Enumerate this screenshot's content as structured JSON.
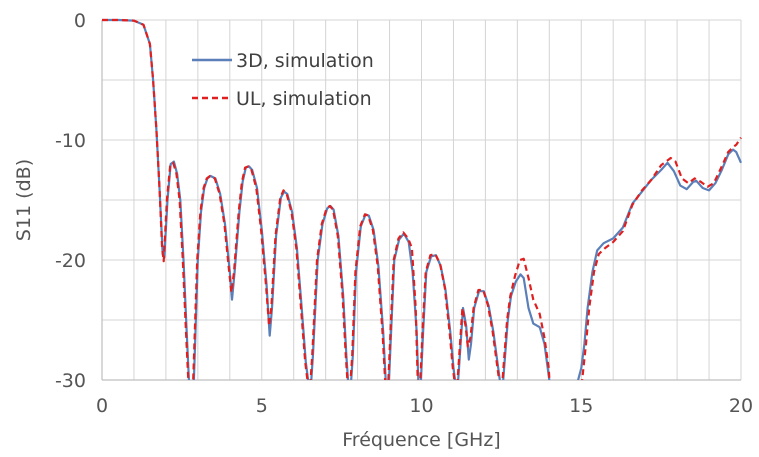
{
  "chart_data": {
    "type": "line",
    "xlabel": "Fréquence [GHz]",
    "ylabel": "S11 (dB)",
    "xlim": [
      0,
      20
    ],
    "ylim": [
      -30,
      0
    ],
    "xticks": [
      0,
      5,
      10,
      15,
      20
    ],
    "yticks": [
      0,
      -10,
      -20,
      -30
    ],
    "minor_grid_x_step": 1,
    "minor_grid_y_step": 5,
    "grid": true,
    "legend_position": "top-left",
    "series": [
      {
        "name": "3D, simulation",
        "color": "#5b7fb8",
        "dash": "solid",
        "points": [
          [
            0,
            0
          ],
          [
            0.5,
            0
          ],
          [
            1,
            -0.05
          ],
          [
            1.3,
            -0.4
          ],
          [
            1.5,
            -2
          ],
          [
            1.6,
            -5
          ],
          [
            1.7,
            -9
          ],
          [
            1.8,
            -14
          ],
          [
            1.9,
            -19.5
          ],
          [
            1.95,
            -19.8
          ],
          [
            2.05,
            -15
          ],
          [
            2.15,
            -12
          ],
          [
            2.25,
            -11.8
          ],
          [
            2.35,
            -12.8
          ],
          [
            2.45,
            -15
          ],
          [
            2.55,
            -20
          ],
          [
            2.65,
            -26
          ],
          [
            2.72,
            -30
          ],
          [
            2.75,
            -32
          ],
          [
            2.85,
            -32
          ],
          [
            2.9,
            -28
          ],
          [
            3.0,
            -20
          ],
          [
            3.1,
            -16
          ],
          [
            3.2,
            -14
          ],
          [
            3.3,
            -13.2
          ],
          [
            3.4,
            -13
          ],
          [
            3.55,
            -13.2
          ],
          [
            3.7,
            -14.5
          ],
          [
            3.85,
            -17
          ],
          [
            4.0,
            -21
          ],
          [
            4.07,
            -23.3
          ],
          [
            4.15,
            -21
          ],
          [
            4.3,
            -16
          ],
          [
            4.4,
            -13.5
          ],
          [
            4.5,
            -12.3
          ],
          [
            4.6,
            -12.2
          ],
          [
            4.7,
            -12.5
          ],
          [
            4.85,
            -14
          ],
          [
            5.0,
            -17.5
          ],
          [
            5.15,
            -22
          ],
          [
            5.25,
            -26.3
          ],
          [
            5.32,
            -24
          ],
          [
            5.45,
            -18
          ],
          [
            5.6,
            -14.8
          ],
          [
            5.7,
            -14.3
          ],
          [
            5.8,
            -14.5
          ],
          [
            5.95,
            -16
          ],
          [
            6.1,
            -19
          ],
          [
            6.25,
            -24
          ],
          [
            6.38,
            -28.5
          ],
          [
            6.45,
            -30
          ],
          [
            6.5,
            -32
          ],
          [
            6.6,
            -28
          ],
          [
            6.75,
            -20
          ],
          [
            6.9,
            -17
          ],
          [
            7.05,
            -15.7
          ],
          [
            7.15,
            -15.5
          ],
          [
            7.25,
            -15.8
          ],
          [
            7.4,
            -18
          ],
          [
            7.55,
            -23
          ],
          [
            7.65,
            -28
          ],
          [
            7.7,
            -30
          ],
          [
            7.75,
            -32
          ],
          [
            7.85,
            -28
          ],
          [
            7.95,
            -21
          ],
          [
            8.1,
            -17.2
          ],
          [
            8.25,
            -16.2
          ],
          [
            8.35,
            -16.3
          ],
          [
            8.5,
            -17.5
          ],
          [
            8.65,
            -20.5
          ],
          [
            8.8,
            -26
          ],
          [
            8.88,
            -30
          ],
          [
            8.95,
            -32
          ],
          [
            9.05,
            -26
          ],
          [
            9.15,
            -20
          ],
          [
            9.3,
            -18.3
          ],
          [
            9.45,
            -17.8
          ],
          [
            9.6,
            -18.5
          ],
          [
            9.72,
            -21
          ],
          [
            9.85,
            -26
          ],
          [
            9.9,
            -30
          ],
          [
            9.95,
            -32
          ],
          [
            10.05,
            -26
          ],
          [
            10.15,
            -21
          ],
          [
            10.3,
            -19.7
          ],
          [
            10.45,
            -19.6
          ],
          [
            10.6,
            -20.5
          ],
          [
            10.75,
            -22.5
          ],
          [
            10.9,
            -26
          ],
          [
            11.0,
            -29
          ],
          [
            11.05,
            -30
          ],
          [
            11.1,
            -32
          ],
          [
            11.2,
            -28
          ],
          [
            11.3,
            -24
          ],
          [
            11.4,
            -25.5
          ],
          [
            11.48,
            -28.3
          ],
          [
            11.55,
            -27
          ],
          [
            11.65,
            -24
          ],
          [
            11.8,
            -22.6
          ],
          [
            11.95,
            -22.6
          ],
          [
            12.1,
            -23.8
          ],
          [
            12.25,
            -26
          ],
          [
            12.4,
            -29
          ],
          [
            12.45,
            -30
          ],
          [
            12.5,
            -32
          ],
          [
            12.6,
            -28.5
          ],
          [
            12.7,
            -25
          ],
          [
            12.8,
            -23
          ],
          [
            12.95,
            -21.8
          ],
          [
            13.1,
            -21.2
          ],
          [
            13.2,
            -21.5
          ],
          [
            13.35,
            -24
          ],
          [
            13.5,
            -25.3
          ],
          [
            13.7,
            -25.6
          ],
          [
            13.85,
            -27
          ],
          [
            14.0,
            -30
          ],
          [
            14.05,
            -32
          ],
          [
            14.8,
            -32
          ],
          [
            14.9,
            -30
          ],
          [
            15.0,
            -29
          ],
          [
            15.1,
            -27
          ],
          [
            15.2,
            -24
          ],
          [
            15.35,
            -21
          ],
          [
            15.5,
            -19.2
          ],
          [
            15.7,
            -18.6
          ],
          [
            16.0,
            -18.2
          ],
          [
            16.3,
            -17.3
          ],
          [
            16.6,
            -15.3
          ],
          [
            16.9,
            -14.3
          ],
          [
            17.2,
            -13.3
          ],
          [
            17.5,
            -12.5
          ],
          [
            17.7,
            -11.9
          ],
          [
            17.9,
            -12.6
          ],
          [
            18.1,
            -13.8
          ],
          [
            18.3,
            -14.1
          ],
          [
            18.5,
            -13.5
          ],
          [
            18.6,
            -13.4
          ],
          [
            18.8,
            -14
          ],
          [
            19.0,
            -14.2
          ],
          [
            19.2,
            -13.6
          ],
          [
            19.4,
            -12.5
          ],
          [
            19.6,
            -11.2
          ],
          [
            19.75,
            -10.8
          ],
          [
            19.85,
            -11
          ],
          [
            19.95,
            -11.6
          ],
          [
            20.0,
            -11.9
          ]
        ]
      },
      {
        "name": "UL, simulation",
        "color": "#e02020",
        "dash": "dashed",
        "points": [
          [
            0,
            0
          ],
          [
            0.5,
            0
          ],
          [
            1,
            -0.05
          ],
          [
            1.3,
            -0.4
          ],
          [
            1.5,
            -2
          ],
          [
            1.6,
            -5
          ],
          [
            1.7,
            -9
          ],
          [
            1.8,
            -14
          ],
          [
            1.88,
            -19
          ],
          [
            1.93,
            -20.1
          ],
          [
            2.03,
            -15
          ],
          [
            2.13,
            -12.2
          ],
          [
            2.23,
            -11.9
          ],
          [
            2.33,
            -12.8
          ],
          [
            2.43,
            -15
          ],
          [
            2.53,
            -20
          ],
          [
            2.63,
            -26
          ],
          [
            2.7,
            -30
          ],
          [
            2.73,
            -32
          ],
          [
            2.83,
            -32
          ],
          [
            2.88,
            -28
          ],
          [
            2.98,
            -20
          ],
          [
            3.08,
            -16
          ],
          [
            3.18,
            -14
          ],
          [
            3.28,
            -13.2
          ],
          [
            3.38,
            -13
          ],
          [
            3.53,
            -13.2
          ],
          [
            3.68,
            -14.5
          ],
          [
            3.83,
            -17
          ],
          [
            3.98,
            -21
          ],
          [
            4.05,
            -22.7
          ],
          [
            4.13,
            -21
          ],
          [
            4.28,
            -16
          ],
          [
            4.38,
            -13.5
          ],
          [
            4.48,
            -12.3
          ],
          [
            4.58,
            -12.2
          ],
          [
            4.68,
            -12.5
          ],
          [
            4.83,
            -14
          ],
          [
            4.98,
            -17.5
          ],
          [
            5.13,
            -22
          ],
          [
            5.23,
            -25.5
          ],
          [
            5.3,
            -24
          ],
          [
            5.43,
            -18
          ],
          [
            5.58,
            -14.8
          ],
          [
            5.68,
            -14.2
          ],
          [
            5.78,
            -14.5
          ],
          [
            5.93,
            -16
          ],
          [
            6.08,
            -19
          ],
          [
            6.23,
            -24
          ],
          [
            6.36,
            -28.5
          ],
          [
            6.43,
            -30
          ],
          [
            6.48,
            -32
          ],
          [
            6.58,
            -28
          ],
          [
            6.73,
            -20
          ],
          [
            6.88,
            -17
          ],
          [
            7.03,
            -15.7
          ],
          [
            7.13,
            -15.5
          ],
          [
            7.23,
            -15.8
          ],
          [
            7.38,
            -18
          ],
          [
            7.53,
            -23
          ],
          [
            7.63,
            -28
          ],
          [
            7.68,
            -30
          ],
          [
            7.73,
            -32
          ],
          [
            7.83,
            -28
          ],
          [
            7.93,
            -21
          ],
          [
            8.08,
            -17.2
          ],
          [
            8.23,
            -16.2
          ],
          [
            8.33,
            -16.3
          ],
          [
            8.48,
            -17.5
          ],
          [
            8.63,
            -20.5
          ],
          [
            8.78,
            -26
          ],
          [
            8.86,
            -30
          ],
          [
            8.93,
            -32
          ],
          [
            9.03,
            -26
          ],
          [
            9.13,
            -20
          ],
          [
            9.28,
            -18.2
          ],
          [
            9.43,
            -17.7
          ],
          [
            9.58,
            -18.2
          ],
          [
            9.7,
            -19
          ],
          [
            9.82,
            -24
          ],
          [
            9.88,
            -30
          ],
          [
            9.93,
            -32
          ],
          [
            10.03,
            -26
          ],
          [
            10.13,
            -21
          ],
          [
            10.28,
            -19.6
          ],
          [
            10.43,
            -19.5
          ],
          [
            10.58,
            -20.3
          ],
          [
            10.73,
            -22.3
          ],
          [
            10.88,
            -26
          ],
          [
            10.98,
            -29
          ],
          [
            11.03,
            -30
          ],
          [
            11.08,
            -32
          ],
          [
            11.18,
            -28
          ],
          [
            11.28,
            -24
          ],
          [
            11.38,
            -25.5
          ],
          [
            11.45,
            -27.2
          ],
          [
            11.53,
            -26.5
          ],
          [
            11.63,
            -24
          ],
          [
            11.78,
            -22.5
          ],
          [
            11.93,
            -22.5
          ],
          [
            12.08,
            -23.8
          ],
          [
            12.23,
            -26
          ],
          [
            12.38,
            -29
          ],
          [
            12.43,
            -30
          ],
          [
            12.48,
            -32
          ],
          [
            12.58,
            -28.5
          ],
          [
            12.68,
            -25
          ],
          [
            12.78,
            -23
          ],
          [
            12.93,
            -21.3
          ],
          [
            13.08,
            -20
          ],
          [
            13.2,
            -19.9
          ],
          [
            13.35,
            -21.5
          ],
          [
            13.5,
            -23.3
          ],
          [
            13.7,
            -24.5
          ],
          [
            13.85,
            -26.5
          ],
          [
            13.98,
            -29
          ],
          [
            14.05,
            -32
          ],
          [
            14.95,
            -32
          ],
          [
            15.05,
            -29.5
          ],
          [
            15.15,
            -27
          ],
          [
            15.25,
            -24
          ],
          [
            15.4,
            -21
          ],
          [
            15.55,
            -19.5
          ],
          [
            15.75,
            -19
          ],
          [
            16.0,
            -18.5
          ],
          [
            16.3,
            -17.6
          ],
          [
            16.6,
            -15.4
          ],
          [
            16.9,
            -14.2
          ],
          [
            17.2,
            -13.3
          ],
          [
            17.5,
            -12.1
          ],
          [
            17.8,
            -11.5
          ],
          [
            17.95,
            -11.8
          ],
          [
            18.15,
            -13.2
          ],
          [
            18.35,
            -13.6
          ],
          [
            18.55,
            -13.2
          ],
          [
            18.75,
            -13.5
          ],
          [
            18.95,
            -13.9
          ],
          [
            19.15,
            -13.6
          ],
          [
            19.4,
            -12.2
          ],
          [
            19.6,
            -11
          ],
          [
            19.75,
            -10.6
          ],
          [
            19.85,
            -10.4
          ],
          [
            20.0,
            -9.8
          ]
        ]
      }
    ]
  }
}
